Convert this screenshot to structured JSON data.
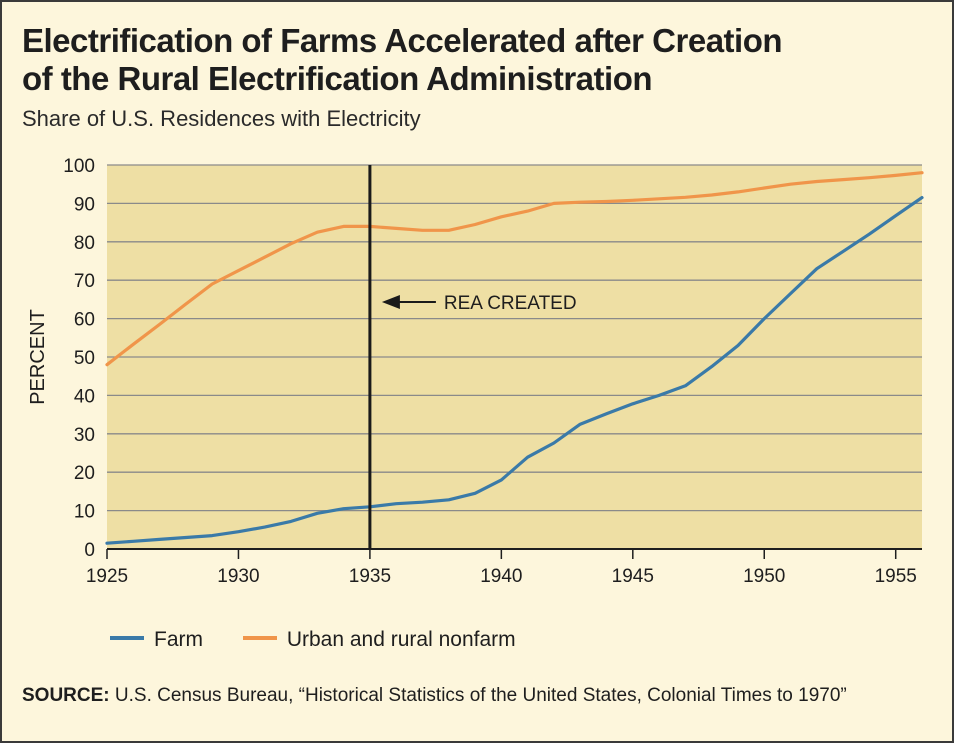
{
  "title_line1": "Electrification of Farms Accelerated after Creation",
  "title_line2": "of the Rural Electrification Administration",
  "subtitle": "Share of U.S. Residences with Electricity",
  "source_label": "SOURCE:",
  "source_text": "U.S. Census Bureau, “Historical Statistics of the United States, Colonial Times to 1970”",
  "colors": {
    "farm": "#3a7aa8",
    "nonfarm": "#f0954a",
    "plot_bg": "#eedfa4",
    "grid": "#8a8a8a",
    "marker": "#1a1a1a"
  },
  "chart_data": {
    "type": "line",
    "title": "Electrification of Farms Accelerated after Creation of the Rural Electrification Administration",
    "subtitle": "Share of U.S. Residences with Electricity",
    "xlabel": "",
    "ylabel": "PERCENT",
    "xlim": [
      1925,
      1956
    ],
    "ylim": [
      0,
      100
    ],
    "x_ticks": [
      "1925",
      "1930",
      "1935",
      "1940",
      "1945",
      "1950",
      "1955"
    ],
    "y_ticks": [
      "0",
      "10",
      "20",
      "30",
      "40",
      "50",
      "60",
      "70",
      "80",
      "90",
      "100"
    ],
    "grid": true,
    "legend_position": "bottom-left",
    "series": [
      {
        "name": "Farm",
        "x": [
          1925,
          1926,
          1927,
          1928,
          1929,
          1930,
          1931,
          1932,
          1933,
          1934,
          1935,
          1936,
          1937,
          1938,
          1939,
          1940,
          1941,
          1942,
          1943,
          1944,
          1945,
          1946,
          1947,
          1948,
          1949,
          1950,
          1951,
          1952,
          1953,
          1954,
          1955,
          1956
        ],
        "values": [
          1.5,
          2.0,
          2.5,
          3.0,
          3.5,
          4.5,
          5.7,
          7.2,
          9.3,
          10.5,
          11.0,
          11.8,
          12.2,
          12.8,
          14.5,
          18.0,
          23.9,
          27.6,
          32.5,
          35.2,
          37.8,
          40.0,
          42.5,
          47.5,
          53.0,
          60.0,
          66.5,
          73.0,
          77.5,
          82.0,
          86.8,
          91.5
        ]
      },
      {
        "name": "Urban and rural nonfarm",
        "x": [
          1925,
          1926,
          1927,
          1928,
          1929,
          1930,
          1931,
          1932,
          1933,
          1934,
          1935,
          1936,
          1937,
          1938,
          1939,
          1940,
          1941,
          1942,
          1943,
          1944,
          1945,
          1946,
          1947,
          1948,
          1949,
          1950,
          1951,
          1952,
          1953,
          1954,
          1955,
          1956
        ],
        "values": [
          48.0,
          53.3,
          58.5,
          63.8,
          69.0,
          72.5,
          76.0,
          79.5,
          82.5,
          84.0,
          84.0,
          83.5,
          83.0,
          83.0,
          84.5,
          86.5,
          88.0,
          90.0,
          90.3,
          90.5,
          90.8,
          91.2,
          91.6,
          92.2,
          93.0,
          94.0,
          95.0,
          95.7,
          96.2,
          96.7,
          97.3,
          98.0
        ]
      }
    ],
    "annotations": [
      {
        "text": "REA CREATED",
        "x": 1935
      }
    ]
  }
}
